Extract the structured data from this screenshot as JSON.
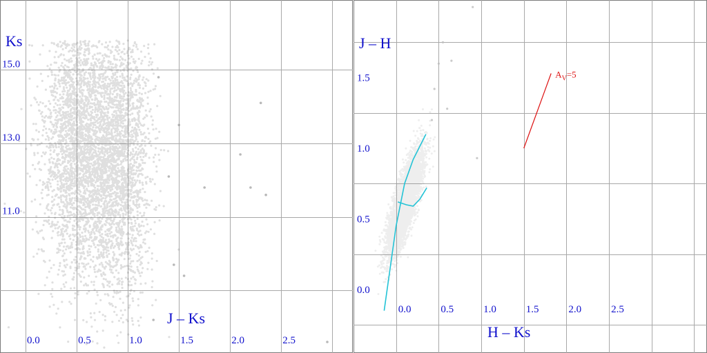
{
  "chart_data": [
    {
      "type": "scatter",
      "title": "",
      "xlabel": "J – Ks",
      "ylabel": "Ks",
      "xlim": [
        -0.25,
        3.2
      ],
      "ylim": [
        16.9,
        7.3
      ],
      "y_inverted": true,
      "grid": true,
      "x_ticks": [
        "0.0",
        "0.5",
        "1.0",
        "1.5",
        "2.0",
        "2.5"
      ],
      "y_ticks": [
        "11.0",
        "13.0",
        "15.0"
      ],
      "point_color": "#6e6e6e",
      "clusters": [
        {
          "cx": 0.5,
          "cy": 12.9,
          "sx": 0.17,
          "sy": 1.75
        },
        {
          "cx": 0.9,
          "cy": 12.6,
          "sx": 0.16,
          "sy": 1.85
        }
      ],
      "outliers": [
        {
          "x": 1.25,
          "y": 8.2
        },
        {
          "x": 1.45,
          "y": 9.7
        },
        {
          "x": 1.55,
          "y": 9.4
        },
        {
          "x": 1.4,
          "y": 12.1
        },
        {
          "x": 1.75,
          "y": 11.8
        },
        {
          "x": 2.2,
          "y": 11.8
        },
        {
          "x": 2.35,
          "y": 11.6
        },
        {
          "x": 2.1,
          "y": 12.7
        },
        {
          "x": 2.3,
          "y": 14.1
        },
        {
          "x": 2.95,
          "y": 7.6
        },
        {
          "x": 1.3,
          "y": 14.8
        },
        {
          "x": 1.5,
          "y": 13.5
        }
      ]
    },
    {
      "type": "scatter",
      "title": "",
      "xlabel": "H – Ks",
      "ylabel": "J – H",
      "xlim": [
        -0.5,
        3.65
      ],
      "ylim": [
        -0.45,
        2.05
      ],
      "grid": true,
      "x_ticks": [
        "0.0",
        "0.5",
        "1.0",
        "1.5",
        "2.0",
        "2.5"
      ],
      "y_ticks": [
        "0.0",
        "0.5",
        "1.0",
        "1.5"
      ],
      "point_color": "#8a8a8a",
      "cluster": {
        "cx": 0.1,
        "cy": 0.6,
        "sx": 0.06,
        "sy": 0.18,
        "slope": 2.2
      },
      "dwarf_locus": [
        {
          "x": -0.14,
          "y": -0.15
        },
        {
          "x": 0.0,
          "y": 0.45
        },
        {
          "x": 0.1,
          "y": 0.75
        },
        {
          "x": 0.2,
          "y": 0.92
        },
        {
          "x": 0.35,
          "y": 1.1
        }
      ],
      "giant_branch": [
        {
          "x": 0.02,
          "y": 0.62
        },
        {
          "x": 0.12,
          "y": 0.6
        },
        {
          "x": 0.2,
          "y": 0.59
        },
        {
          "x": 0.28,
          "y": 0.64
        },
        {
          "x": 0.36,
          "y": 0.72
        }
      ],
      "locus_color": "#22c3d6",
      "reddening_vector": {
        "label_main": "A",
        "label_sub": "V",
        "label_rest": "=5",
        "color": "#dd1111",
        "x0": 1.5,
        "y0": 1.0,
        "x1": 1.82,
        "y1": 1.53
      },
      "outliers": [
        {
          "x": 0.9,
          "y": 2.0
        },
        {
          "x": 0.55,
          "y": 1.75
        },
        {
          "x": 0.65,
          "y": 1.62
        },
        {
          "x": 0.5,
          "y": 1.6
        },
        {
          "x": 0.45,
          "y": 1.42
        },
        {
          "x": 0.95,
          "y": 0.93
        },
        {
          "x": 0.6,
          "y": 1.28
        },
        {
          "x": 0.42,
          "y": 1.2
        }
      ]
    }
  ]
}
